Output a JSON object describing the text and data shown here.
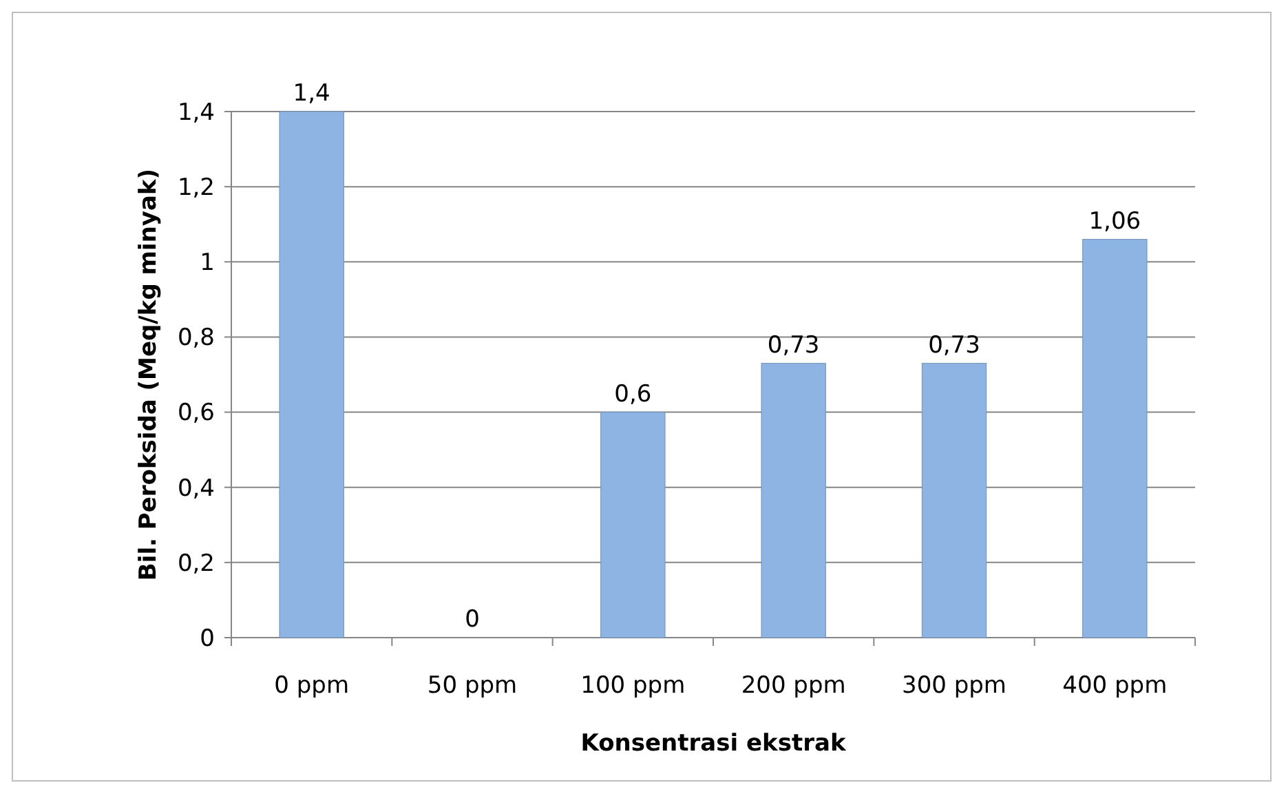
{
  "chart_data": {
    "type": "bar",
    "xlabel": "Konsentrasi ekstrak",
    "ylabel": "Bil. Peroksida (Meq/kg minyak)",
    "categories": [
      "0 ppm",
      "50 ppm",
      "100 ppm",
      "200 ppm",
      "300 ppm",
      "400 ppm"
    ],
    "values": [
      1.4,
      0,
      0.6,
      0.73,
      0.73,
      1.06
    ],
    "value_labels": [
      "1,4",
      "0",
      "0,6",
      "0,73",
      "0,73",
      "1,06"
    ],
    "color": "#8db4e2",
    "ylim": [
      0,
      1.4
    ],
    "yticks": [
      0,
      {
        "value": 0.2,
        "label": "0,2"
      },
      {
        "value": 0.4,
        "label": "0,4"
      },
      {
        "value": 0.6,
        "label": "0,6"
      },
      {
        "value": 0.8,
        "label": "0,8"
      },
      1,
      {
        "value": 1.2,
        "label": "1,2"
      },
      {
        "value": 1.4,
        "label": "1,4"
      }
    ],
    "grid": "y"
  }
}
